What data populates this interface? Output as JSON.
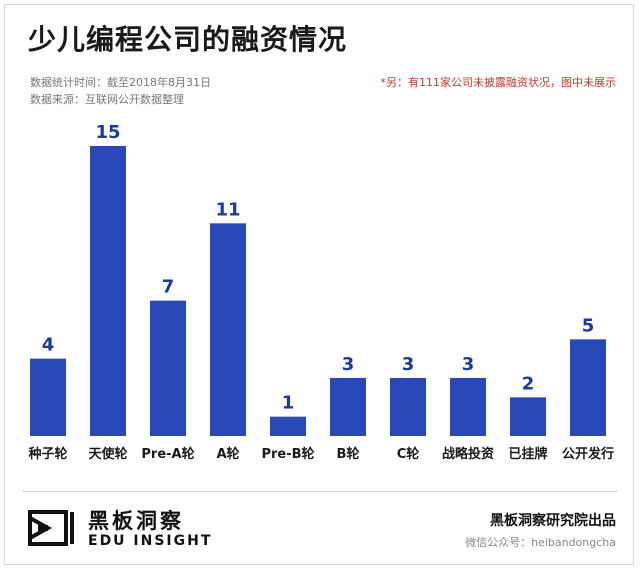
{
  "header": {
    "title": "少儿编程公司的融资情况",
    "stat_time": "数据统计时间：截至2018年8月31日",
    "source": "数据来源：互联网公开数据整理",
    "note": "*另：有111家公司未披露融资状况，图中未展示"
  },
  "chart_data": {
    "type": "bar",
    "title": "少儿编程公司的融资情况",
    "categories": [
      "种子轮",
      "天使轮",
      "Pre-A轮",
      "A轮",
      "Pre-B轮",
      "B轮",
      "C轮",
      "战略投资",
      "已挂牌",
      "公开发行"
    ],
    "values": [
      4,
      15,
      7,
      11,
      1,
      3,
      3,
      3,
      2,
      5
    ],
    "xlabel": "",
    "ylabel": "",
    "ylim": [
      0,
      15
    ],
    "grid": false,
    "bar_color": "#2a49b8"
  },
  "footer": {
    "brand_cn": "黑板洞察",
    "brand_en": "EDU INSIGHT",
    "institute": "黑板洞察研究院出品",
    "wechat": "微信公众号：heibandongcha"
  },
  "colors": {
    "bar": "#2a49b8",
    "note": "#c0392b",
    "text": "#1a1a1a"
  }
}
